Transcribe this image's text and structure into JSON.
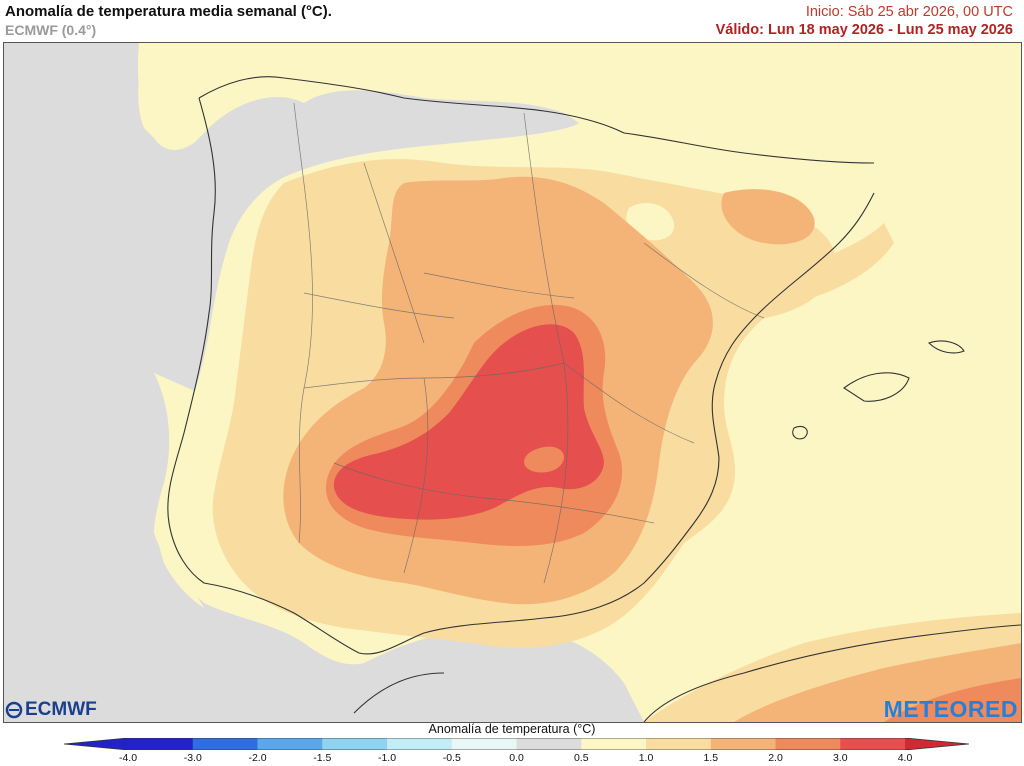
{
  "header": {
    "title": "Anomalía de temperatura media semanal (°C).",
    "model": "ECMWF (0.4°)",
    "init": "Inicio: Sáb 25 abr 2026, 00 UTC",
    "valid": "Válido: Lun 18 may 2026 - Lun 25 may 2026"
  },
  "colorbar": {
    "title": "Anomalía de temperatura (°C)",
    "ticks": [
      "-4.0",
      "-3.0",
      "-2.0",
      "-1.5",
      "-1.0",
      "-0.5",
      "0.0",
      "0.5",
      "1.0",
      "1.5",
      "2.0",
      "3.0",
      "4.0"
    ],
    "colors": [
      "#2222c8",
      "#2f6ee0",
      "#5aa7ea",
      "#8fd3f0",
      "#c2ecf6",
      "#e8f6f6",
      "#dcdcdc",
      "#fbf6c4",
      "#f9dca0",
      "#f4b477",
      "#ef8a5d",
      "#e5504e",
      "#cf2a33"
    ]
  },
  "logos": {
    "left": "ECMWF",
    "right": "METEORED"
  },
  "map": {
    "region": "Península Ibérica y Baleares",
    "sea_color": "#fbf6c4",
    "land_neutral": "#dcdcdc",
    "anomaly_bands": [
      "0.5",
      "1.0",
      "1.5",
      "2.0"
    ]
  }
}
